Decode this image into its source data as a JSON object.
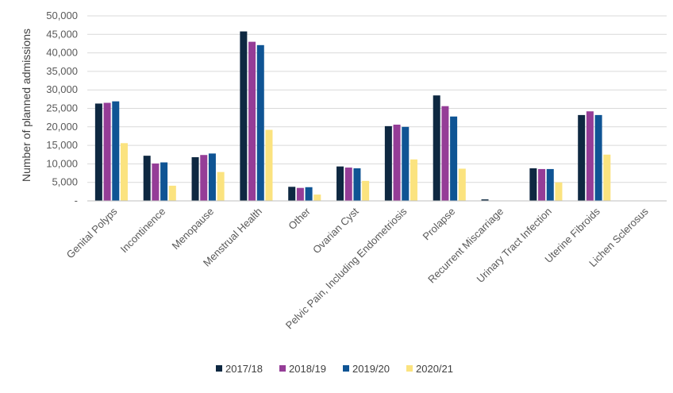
{
  "chart_data": {
    "type": "bar",
    "title": "",
    "xlabel": "",
    "ylabel": "Number of planned admissions",
    "ylim": [
      0,
      50000
    ],
    "yticks": [
      0,
      5000,
      10000,
      15000,
      20000,
      25000,
      30000,
      35000,
      40000,
      45000,
      50000
    ],
    "ytick_labels": [
      "-",
      "5,000",
      "10,000",
      "15,000",
      "20,000",
      "25,000",
      "30,000",
      "35,000",
      "40,000",
      "45,000",
      "50,000"
    ],
    "grid": "horizontal",
    "legend_position": "bottom",
    "categories": [
      "Genital Polyps",
      "Incontinence",
      "Menopause",
      "Menstrual Health",
      "Other",
      "Ovarian Cyst",
      "Pelvic Pain, Including Endometriosis",
      "Prolapse",
      "Recurrent Miscarriage",
      "Urinary Tract Infection",
      "Uterine Fibroids",
      "Lichen Sclerosus"
    ],
    "series": [
      {
        "name": "2017/18",
        "color": "#0e2841",
        "values": [
          26300,
          12200,
          11800,
          45800,
          3800,
          9300,
          20200,
          28500,
          400,
          8800,
          23200,
          0
        ]
      },
      {
        "name": "2018/19",
        "color": "#953d97",
        "values": [
          26500,
          10100,
          12400,
          43000,
          3500,
          9000,
          20600,
          25600,
          0,
          8600,
          24200,
          0
        ]
      },
      {
        "name": "2019/20",
        "color": "#0f5494",
        "values": [
          26900,
          10400,
          12800,
          42100,
          3700,
          8800,
          20000,
          22800,
          0,
          8600,
          23200,
          0
        ]
      },
      {
        "name": "2020/21",
        "color": "#fbe37f",
        "values": [
          15600,
          4100,
          7800,
          19200,
          1700,
          5400,
          11200,
          8700,
          0,
          5000,
          12500,
          0
        ]
      }
    ]
  }
}
